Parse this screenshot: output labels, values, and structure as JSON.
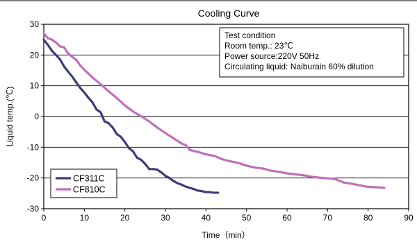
{
  "chart_data": {
    "type": "line",
    "title": "Cooling Curve",
    "xlabel": "Time（min）",
    "ylabel": "Liquid temp.(℃)",
    "xlim": [
      0,
      90
    ],
    "ylim": [
      -30,
      30
    ],
    "xticks": [
      "0",
      "10",
      "20",
      "30",
      "40",
      "50",
      "60",
      "70",
      "80",
      "90"
    ],
    "yticks": [
      "30",
      "20",
      "10",
      "0",
      "-10",
      "-20",
      "-30"
    ],
    "grid": "horizontal",
    "legend_position": "bottom-left",
    "annotation": [
      "Test condition",
      "Room temp.: 23℃",
      "Power source:220V 50Hz",
      "Circulating liquid: Naiburain 60% dilution"
    ],
    "series": [
      {
        "name": "CF311C",
        "color": "#3b3d78",
        "x": [
          0,
          1,
          2,
          3,
          4,
          5,
          6,
          7,
          8,
          9,
          10,
          11,
          12,
          13,
          14,
          15,
          16,
          17,
          18,
          19,
          20,
          21,
          22,
          23,
          24,
          25,
          26,
          27,
          28,
          29,
          30,
          31,
          32,
          33,
          34,
          35,
          36,
          37,
          38,
          39,
          40,
          41,
          42,
          43
        ],
        "y": [
          25,
          23.3,
          21.4,
          20,
          18.6,
          16.3,
          14.6,
          13,
          11.1,
          9.3,
          7.8,
          6.1,
          4.6,
          2.3,
          1.4,
          -1.6,
          -2.2,
          -3.6,
          -5.7,
          -6.6,
          -8.3,
          -10.3,
          -11.3,
          -13.4,
          -14.1,
          -15.4,
          -17.1,
          -17.1,
          -17.3,
          -18.2,
          -19.3,
          -20,
          -21,
          -21.7,
          -22.2,
          -22.8,
          -23.2,
          -23.6,
          -24.1,
          -24.3,
          -24.6,
          -24.6,
          -24.8,
          -24.8
        ]
      },
      {
        "name": "CF810C",
        "color": "#c070b8",
        "x": [
          0,
          1,
          2,
          3,
          4,
          5,
          6,
          7,
          8,
          9,
          10,
          12,
          14,
          16,
          18,
          20,
          22,
          24,
          26,
          28,
          30,
          32,
          34,
          35,
          36,
          38,
          40,
          42,
          44,
          46,
          48,
          50,
          52,
          54,
          56,
          58,
          60,
          62,
          64,
          66,
          68,
          70,
          72,
          74,
          76,
          78,
          80,
          82,
          84
        ],
        "y": [
          27,
          25.5,
          25,
          24.1,
          22.8,
          22.5,
          20.5,
          19.4,
          18.4,
          16.6,
          15.2,
          12.7,
          10.5,
          8.2,
          6,
          3.6,
          1.6,
          0.1,
          -1.6,
          -3.6,
          -5.4,
          -7.1,
          -8.8,
          -9.3,
          -10.9,
          -11.5,
          -12.3,
          -12.8,
          -13.9,
          -14.6,
          -15.1,
          -16,
          -16.6,
          -16.9,
          -17.6,
          -18,
          -18.5,
          -18.8,
          -19.1,
          -19.6,
          -19.9,
          -20.1,
          -20.4,
          -21.5,
          -21.9,
          -22.4,
          -22.9,
          -23,
          -23.2
        ]
      }
    ]
  }
}
